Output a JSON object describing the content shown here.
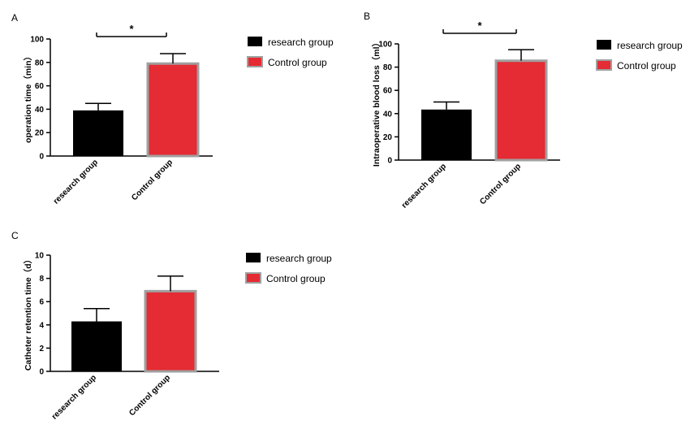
{
  "colors": {
    "research": "#000000",
    "control": "#e52b33",
    "control_border": "#a0a0a0"
  },
  "chart_data": [
    {
      "panel": "A",
      "type": "bar",
      "categories": [
        "research group",
        "Control group"
      ],
      "values": [
        39,
        79
      ],
      "errors": [
        6,
        8.5
      ],
      "ylabel": "operation time（min）",
      "ylim": [
        0,
        100
      ],
      "yticks": [
        0,
        20,
        40,
        60,
        80,
        100
      ],
      "legend": [
        "research group",
        "Control group"
      ],
      "legend_position": "right",
      "significance": "*"
    },
    {
      "panel": "B",
      "type": "bar",
      "categories": [
        "research group",
        "Control group"
      ],
      "values": [
        43.5,
        85.5
      ],
      "errors": [
        6.5,
        9.5
      ],
      "ylabel": "Intraoperative blood loss（ml）",
      "ylim": [
        0,
        100
      ],
      "yticks": [
        0,
        20,
        40,
        60,
        80,
        100
      ],
      "legend": [
        "research group",
        "Control group"
      ],
      "legend_position": "right",
      "significance": "*"
    },
    {
      "panel": "C",
      "type": "bar",
      "categories": [
        "research group",
        "Control group"
      ],
      "values": [
        4.3,
        6.9
      ],
      "errors": [
        1.1,
        1.3
      ],
      "ylabel": "Catheter retention time（d）",
      "ylim": [
        0,
        10
      ],
      "yticks": [
        0,
        2,
        4,
        6,
        8,
        10
      ],
      "legend": [
        "research group",
        "Control group"
      ],
      "legend_position": "right",
      "significance": ""
    }
  ]
}
